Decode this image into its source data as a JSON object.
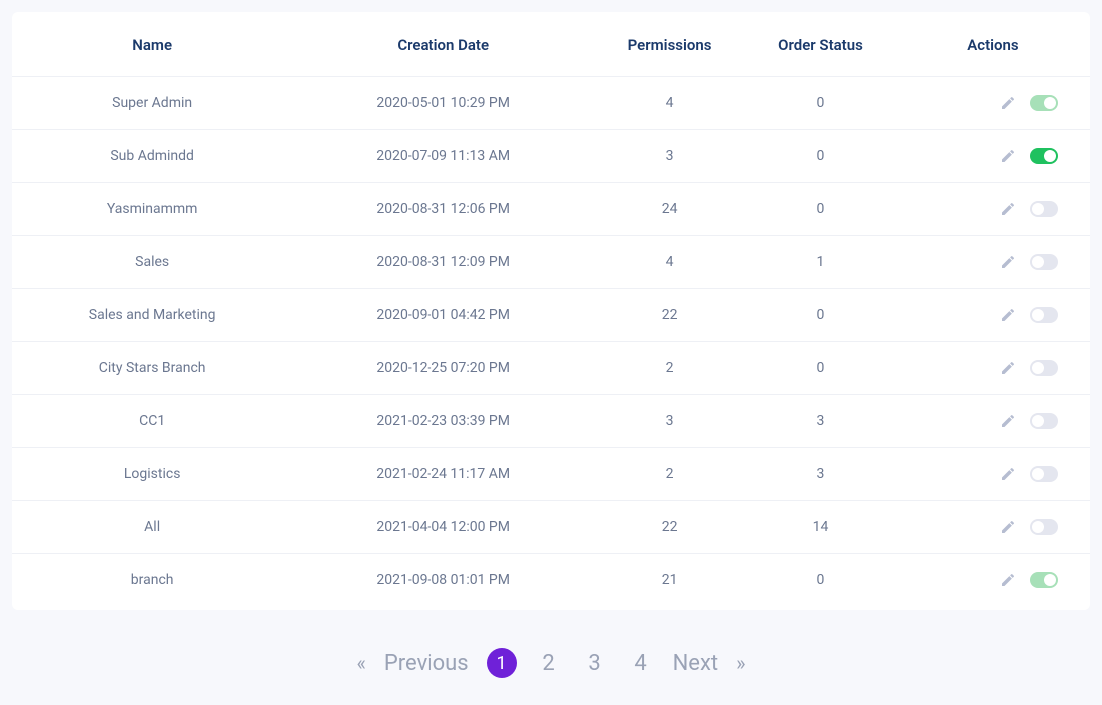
{
  "colors": {
    "page_bg": "#f7f8fc",
    "card_bg": "#ffffff",
    "border": "#eef0f5",
    "header_text": "#1b3a6b",
    "cell_text": "#6b7790",
    "edit_icon": "#b6bdd1",
    "toggle_off_bg": "#e4e6ef",
    "toggle_on_light_bg": "#a7e0b8",
    "toggle_on_bg": "#1fc15f",
    "pagination_inactive": "#9aa2b5",
    "pagination_active_bg": "#6f21d8",
    "pagination_active_text": "#ffffff"
  },
  "table": {
    "columns": {
      "name": "Name",
      "creation_date": "Creation Date",
      "permissions": "Permissions",
      "order_status": "Order Status",
      "actions": "Actions"
    },
    "rows": [
      {
        "name": "Super Admin",
        "creation_date": "2020-05-01 10:29 PM",
        "permissions": "4",
        "order_status": "0",
        "toggle": "on-light"
      },
      {
        "name": "Sub Admindd",
        "creation_date": "2020-07-09 11:13 AM",
        "permissions": "3",
        "order_status": "0",
        "toggle": "on"
      },
      {
        "name": "Yasminammm",
        "creation_date": "2020-08-31 12:06 PM",
        "permissions": "24",
        "order_status": "0",
        "toggle": "off"
      },
      {
        "name": "Sales",
        "creation_date": "2020-08-31 12:09 PM",
        "permissions": "4",
        "order_status": "1",
        "toggle": "off"
      },
      {
        "name": "Sales and Marketing",
        "creation_date": "2020-09-01 04:42 PM",
        "permissions": "22",
        "order_status": "0",
        "toggle": "off"
      },
      {
        "name": "City Stars Branch",
        "creation_date": "2020-12-25 07:20 PM",
        "permissions": "2",
        "order_status": "0",
        "toggle": "off"
      },
      {
        "name": "CC1",
        "creation_date": "2021-02-23 03:39 PM",
        "permissions": "3",
        "order_status": "3",
        "toggle": "off"
      },
      {
        "name": "Logistics",
        "creation_date": "2021-02-24 11:17 AM",
        "permissions": "2",
        "order_status": "3",
        "toggle": "off"
      },
      {
        "name": "All",
        "creation_date": "2021-04-04 12:00 PM",
        "permissions": "22",
        "order_status": "14",
        "toggle": "off"
      },
      {
        "name": "branch",
        "creation_date": "2021-09-08 01:01 PM",
        "permissions": "21",
        "order_status": "0",
        "toggle": "on-light"
      }
    ]
  },
  "pagination": {
    "first": "«",
    "previous": "Previous",
    "pages": [
      "1",
      "2",
      "3",
      "4"
    ],
    "active_index": 0,
    "next": "Next",
    "last": "»"
  }
}
